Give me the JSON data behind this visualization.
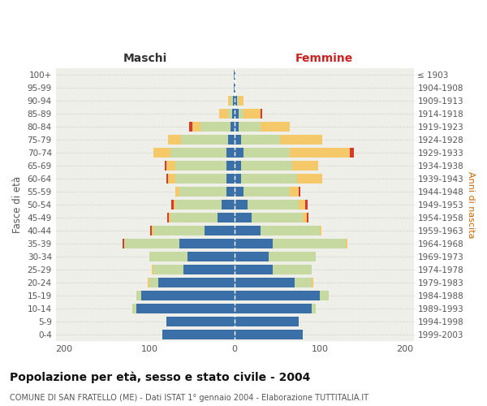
{
  "age_groups": [
    "0-4",
    "5-9",
    "10-14",
    "15-19",
    "20-24",
    "25-29",
    "30-34",
    "35-39",
    "40-44",
    "45-49",
    "50-54",
    "55-59",
    "60-64",
    "65-69",
    "70-74",
    "75-79",
    "80-84",
    "85-89",
    "90-94",
    "95-99",
    "100+"
  ],
  "birth_years": [
    "1999-2003",
    "1994-1998",
    "1989-1993",
    "1984-1988",
    "1979-1983",
    "1974-1978",
    "1969-1973",
    "1964-1968",
    "1959-1963",
    "1954-1958",
    "1949-1953",
    "1944-1948",
    "1939-1943",
    "1934-1938",
    "1929-1933",
    "1924-1928",
    "1919-1923",
    "1914-1918",
    "1909-1913",
    "1904-1908",
    "≤ 1903"
  ],
  "male_single": [
    85,
    80,
    115,
    110,
    90,
    60,
    55,
    65,
    35,
    20,
    15,
    10,
    10,
    10,
    10,
    8,
    5,
    3,
    2,
    1,
    1
  ],
  "male_married": [
    0,
    0,
    5,
    5,
    10,
    35,
    45,
    65,
    60,
    55,
    55,
    55,
    60,
    60,
    65,
    55,
    35,
    5,
    3,
    0,
    0
  ],
  "male_widowed": [
    0,
    0,
    0,
    0,
    2,
    2,
    0,
    0,
    2,
    2,
    2,
    5,
    8,
    10,
    20,
    15,
    10,
    10,
    3,
    0,
    0
  ],
  "male_divorced": [
    0,
    0,
    0,
    0,
    0,
    0,
    0,
    2,
    2,
    2,
    2,
    0,
    2,
    2,
    0,
    0,
    3,
    0,
    0,
    0,
    0
  ],
  "female_single": [
    80,
    75,
    90,
    100,
    70,
    45,
    40,
    45,
    30,
    20,
    15,
    10,
    8,
    8,
    10,
    8,
    5,
    5,
    3,
    1,
    1
  ],
  "female_married": [
    0,
    0,
    5,
    10,
    20,
    45,
    55,
    85,
    70,
    60,
    60,
    55,
    65,
    60,
    55,
    45,
    25,
    5,
    2,
    0,
    0
  ],
  "female_widowed": [
    0,
    0,
    0,
    0,
    2,
    0,
    0,
    2,
    2,
    5,
    8,
    10,
    30,
    30,
    70,
    50,
    35,
    20,
    5,
    0,
    0
  ],
  "female_divorced": [
    0,
    0,
    0,
    0,
    0,
    0,
    0,
    0,
    0,
    2,
    3,
    2,
    0,
    0,
    5,
    0,
    0,
    2,
    0,
    0,
    0
  ],
  "colors": {
    "single": "#3b6fa8",
    "married": "#c5d9a0",
    "widowed": "#f5c96a",
    "divorced": "#d73a2a"
  },
  "xlim": 210,
  "title": "Popolazione per età, sesso e stato civile - 2004",
  "subtitle": "COMUNE DI SAN FRATELLO (ME) - Dati ISTAT 1° gennaio 2004 - Elaborazione TUTTITALIA.IT",
  "xlabel_left": "Maschi",
  "xlabel_right": "Femmine",
  "ylabel_left": "Fasce di età",
  "ylabel_right": "Anni di nascita",
  "bg_color": "#efefea",
  "grid_color": "#d0d0d0"
}
